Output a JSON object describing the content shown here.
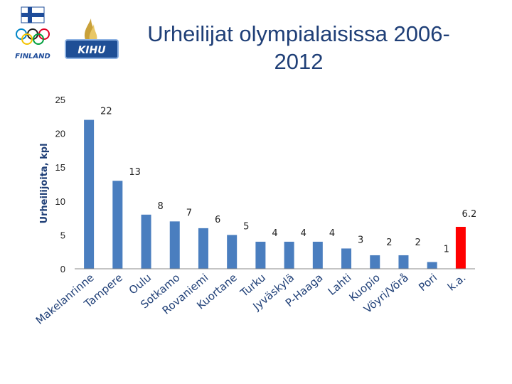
{
  "header": {
    "title_line1": "Urheilijat olympialaisissa 2006-",
    "title_line2": "2012",
    "logo_finland_text": "FINLAND",
    "logo_kihu_text": "KIHU"
  },
  "colors": {
    "bar": "#4a7ebf",
    "highlight": "#ff0000",
    "title": "#1f3f77"
  },
  "chart_data": {
    "type": "bar",
    "title": "Urheilijat olympialaisissa 2006-2012",
    "xlabel": "",
    "ylabel": "Urheilijoita, kpl",
    "ylim": [
      0,
      25
    ],
    "yticks": [
      0,
      5,
      10,
      15,
      20,
      25
    ],
    "categories": [
      "Makelanrinne",
      "Tampere",
      "Oulu",
      "Sotkamo",
      "Rovaniemi",
      "Kuortane",
      "Turku",
      "Jyväskylä",
      "P-Haaga",
      "Lahti",
      "Kuopio",
      "Vöyri/Vörå",
      "Pori",
      "k.a."
    ],
    "values": [
      22,
      13,
      8,
      7,
      6,
      5,
      4,
      4,
      4,
      3,
      2,
      2,
      1,
      6.2
    ],
    "data_labels": [
      "22",
      "13",
      "8",
      "7",
      "6",
      "5",
      "4",
      "4",
      "4",
      "3",
      "2",
      "2",
      "1",
      "6.2"
    ],
    "highlight_category": "k.a.",
    "grid": false,
    "legend": "none"
  }
}
